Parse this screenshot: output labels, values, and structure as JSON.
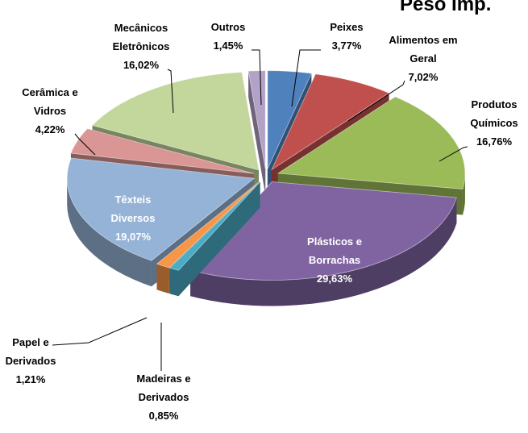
{
  "chart_data": {
    "type": "pie",
    "title": "Peso Imp.",
    "categories": [
      "Peixes",
      "Alimentos em Geral",
      "Produtos Químicos",
      "Plásticos e Borrachas",
      "Madeiras e Derivados",
      "Papel e Derivados",
      "Têxteis Diversos",
      "Cerâmica e Vidros",
      "Mecânicos Eletrônicos",
      "Outros"
    ],
    "values": [
      3.77,
      7.02,
      16.76,
      29.63,
      0.85,
      1.21,
      19.07,
      4.22,
      16.02,
      1.45
    ],
    "value_labels": [
      "3,77%",
      "7,02%",
      "16,76%",
      "29,63%",
      "0,85%",
      "1,21%",
      "19,07%",
      "4,22%",
      "16,02%",
      "1,45%"
    ],
    "colors": [
      "#4f81bd",
      "#c0504d",
      "#9bbb59",
      "#8064a2",
      "#4bacc6",
      "#f79646",
      "#95b3d7",
      "#d99694",
      "#c3d69b",
      "#b3a2c7"
    ]
  }
}
